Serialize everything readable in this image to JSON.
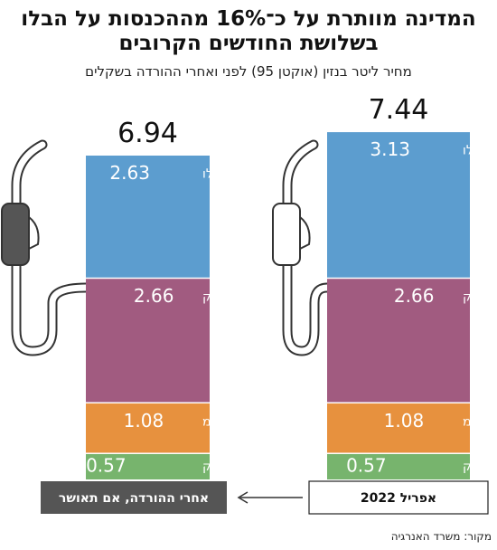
{
  "chart_data": {
    "type": "stacked_bar",
    "title": "המדינה מוותרת על כ־16% מההכנסות על הבלו בשלושת החודשים הקרובים",
    "subtitle": "מחיר ליטר בנזין (אוקטן 95) לפני ואחרי ההורדה בשקלים",
    "categories": [
      "אפריל 2022",
      "אחרי ההורדה, אם תאושר"
    ],
    "totals": [
      7.44,
      6.94
    ],
    "series": [
      {
        "name": "מס הבלו",
        "color": "#5c9dcf",
        "values": [
          3.13,
          2.63
        ]
      },
      {
        "name": "דלק",
        "color": "#a15b80",
        "values": [
          2.66,
          2.66
        ]
      },
      {
        "name": "מע״מ",
        "color": "#e7913e",
        "values": [
          1.08,
          1.08
        ]
      },
      {
        "name": "מרווח השיווק",
        "color": "#77b46d",
        "values": [
          0.57,
          0.57
        ]
      }
    ],
    "source": "מקור: משרד האנרגיה"
  }
}
